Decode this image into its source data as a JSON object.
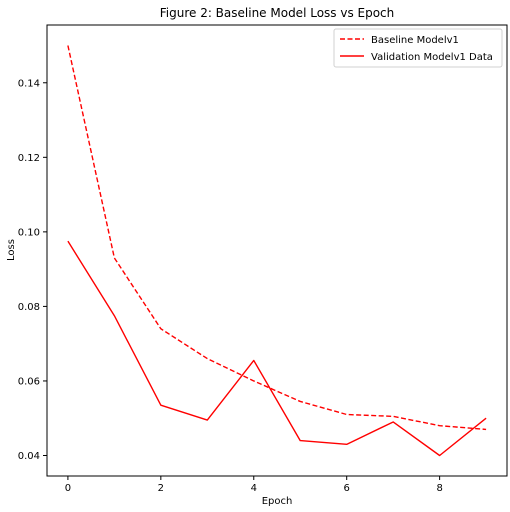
{
  "chart_data": {
    "type": "line",
    "title": "Figure 2: Baseline Model Loss vs Epoch",
    "xlabel": "Epoch",
    "ylabel": "Loss",
    "xlim": [
      -0.45,
      9.45
    ],
    "ylim": [
      0.0345,
      0.1555
    ],
    "xticks": [
      0,
      2,
      4,
      6,
      8
    ],
    "xtick_labels": [
      "0",
      "2",
      "4",
      "6",
      "8"
    ],
    "yticks": [
      0.04,
      0.06,
      0.08,
      0.1,
      0.12,
      0.14
    ],
    "ytick_labels": [
      "0.04",
      "0.06",
      "0.08",
      "0.10",
      "0.12",
      "0.14"
    ],
    "grid": false,
    "legend_position": "top-right",
    "x": [
      0,
      1,
      2,
      3,
      4,
      5,
      6,
      7,
      8,
      9
    ],
    "series": [
      {
        "name": "Baseline Modelv1",
        "values": [
          0.15,
          0.093,
          0.074,
          0.066,
          0.06,
          0.0545,
          0.051,
          0.0505,
          0.048,
          0.047
        ],
        "color": "#ff0000",
        "style": "dashed"
      },
      {
        "name": "Validation Modelv1 Data",
        "values": [
          0.0975,
          0.0775,
          0.0535,
          0.0495,
          0.0655,
          0.044,
          0.043,
          0.049,
          0.04,
          0.05
        ],
        "color": "#ff0000",
        "style": "solid"
      }
    ]
  }
}
